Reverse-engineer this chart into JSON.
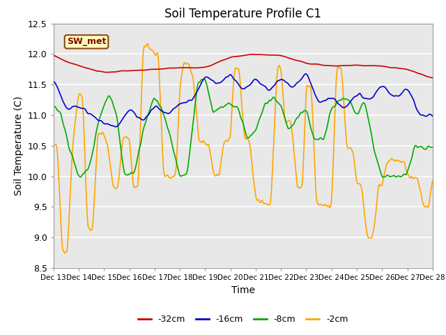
{
  "title": "Soil Temperature Profile C1",
  "xlabel": "Time",
  "ylabel": "Soil Temperature (C)",
  "ylim": [
    8.5,
    12.5
  ],
  "xlim": [
    0,
    15
  ],
  "xtick_labels": [
    "Dec 13",
    "Dec 14",
    "Dec 15",
    "Dec 16",
    "Dec 17",
    "Dec 18",
    "Dec 19",
    "Dec 20",
    "Dec 21",
    "Dec 22",
    "Dec 23",
    "Dec 24",
    "Dec 25",
    "Dec 26",
    "Dec 27",
    "Dec 28"
  ],
  "ytick_vals": [
    8.5,
    9.0,
    9.5,
    10.0,
    10.5,
    11.0,
    11.5,
    12.0,
    12.5
  ],
  "legend_labels": [
    "-32cm",
    "-16cm",
    "-8cm",
    "-2cm"
  ],
  "annotation_text": "SW_met",
  "annotation_color": "#8B0000",
  "annotation_bg": "#FFFFC0",
  "bg_color": "#E8E8E8",
  "line_width": 1.2,
  "title_fontsize": 12
}
